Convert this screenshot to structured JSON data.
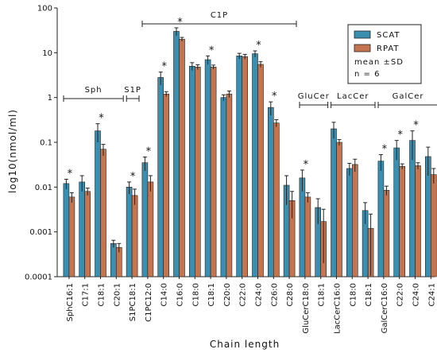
{
  "chart_data": {
    "type": "bar",
    "scale": "log10",
    "ylim": [
      0.0001,
      100
    ],
    "yticks": [
      "0.0001",
      "0.001",
      "0.01",
      "0.1",
      "1",
      "10",
      "100"
    ],
    "ylabel": "log10(nmol/ml)",
    "xlabel": "Chain length",
    "categories": [
      "SphC16:1",
      "C17:1",
      "C18:1",
      "C20:1",
      "S1PC18:1",
      "C1PC12:0",
      "C14:0",
      "C16:0",
      "C18:0",
      "C18:1",
      "C20:0",
      "C22:0",
      "C24:0",
      "C26:0",
      "C28:0",
      "GluCerC18:0",
      "C18:1",
      "LacCerC16:0",
      "C18:0",
      "C18:1",
      "GalCerC16:0",
      "C22:0",
      "C24:0",
      "C24:1"
    ],
    "series": [
      {
        "name": "SCAT",
        "color": "#3a8fb0",
        "values": [
          0.012,
          0.013,
          0.18,
          0.00055,
          0.01,
          0.035,
          2.8,
          30,
          5,
          7,
          1.0,
          8.5,
          9.5,
          0.6,
          0.011,
          0.016,
          0.0035,
          0.2,
          0.026,
          0.003,
          0.038,
          0.075,
          0.11,
          0.048
        ],
        "errors": [
          0.003,
          0.005,
          0.08,
          0.0001,
          0.003,
          0.012,
          0.9,
          6,
          1,
          1.5,
          0.15,
          1.2,
          1.5,
          0.2,
          0.007,
          0.008,
          0.002,
          0.08,
          0.008,
          0.0015,
          0.015,
          0.035,
          0.07,
          0.03
        ]
      },
      {
        "name": "RPAT",
        "color": "#c4754f",
        "values": [
          0.006,
          0.008,
          0.07,
          0.00045,
          0.0065,
          0.013,
          1.2,
          20,
          4.8,
          4.8,
          1.2,
          8.2,
          5.5,
          0.27,
          0.005,
          0.006,
          0.0017,
          0.1,
          0.032,
          0.0012,
          0.0085,
          0.029,
          0.03,
          0.019
        ],
        "errors": [
          0.0015,
          0.0015,
          0.02,
          0.0001,
          0.0025,
          0.005,
          0.15,
          2,
          0.6,
          0.5,
          0.2,
          1,
          0.8,
          0.05,
          0.003,
          0.0015,
          0.0015,
          0.015,
          0.01,
          0.0013,
          0.002,
          0.004,
          0.005,
          0.007
        ]
      }
    ],
    "significant": [
      0,
      2,
      4,
      5,
      6,
      7,
      9,
      12,
      13,
      15,
      20,
      21,
      22
    ],
    "significance_marker": "*",
    "groups": [
      {
        "label": "Sph",
        "from": 0,
        "to": 3
      },
      {
        "label": "S1P",
        "from": 4,
        "to": 4
      },
      {
        "label": "C1P",
        "from": 5,
        "to": 14
      },
      {
        "label": "GluCer",
        "from": 15,
        "to": 16
      },
      {
        "label": "LacCer",
        "from": 17,
        "to": 19
      },
      {
        "label": "GalCer",
        "from": 20,
        "to": 23
      }
    ],
    "legend": {
      "position": "top-right",
      "note_line1": "mean ±SD",
      "note_line2": "n = 6"
    }
  }
}
